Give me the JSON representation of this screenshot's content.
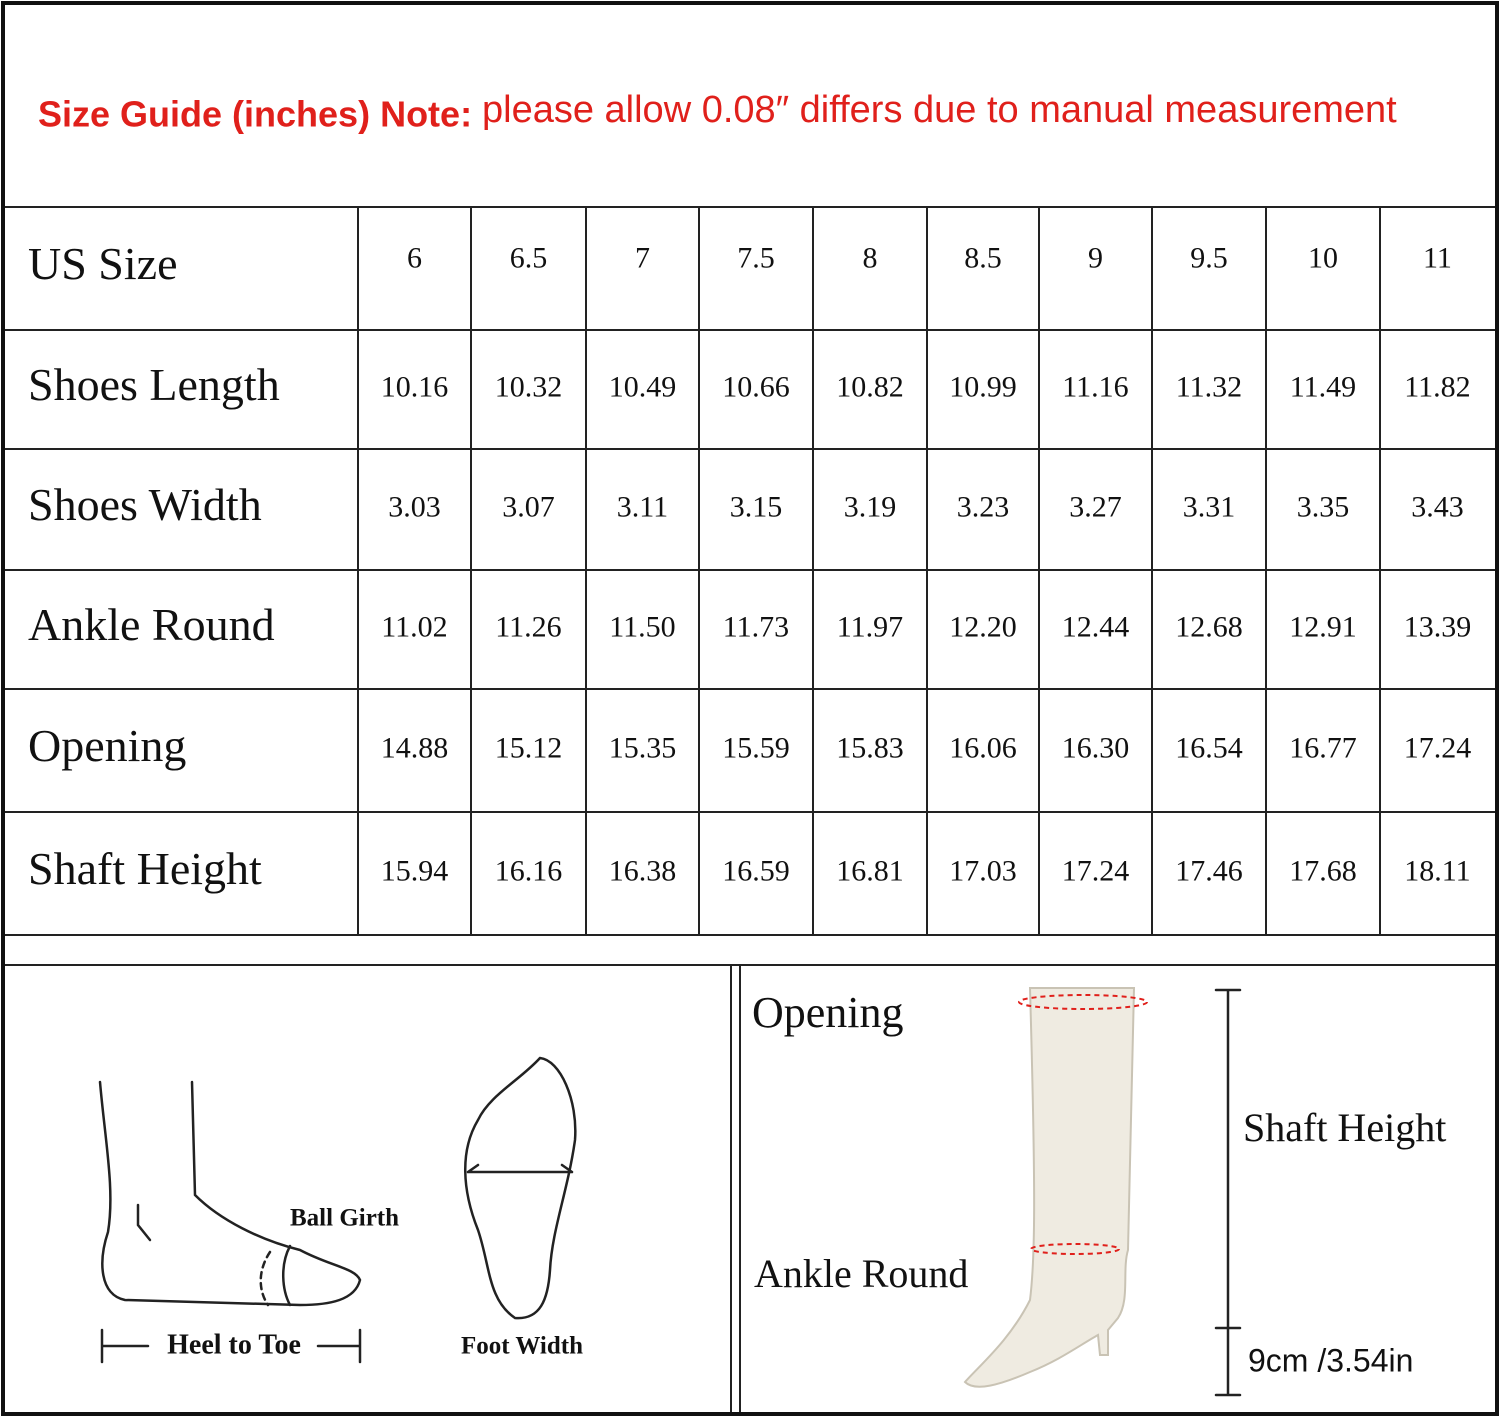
{
  "header": {
    "title": "Size Guide (inches) Note:",
    "note": "please allow 0.08″ differs due to manual measurement"
  },
  "table": {
    "header": [
      "US Size",
      "6",
      "6.5",
      "7",
      "7.5",
      "8",
      "8.5",
      "9",
      "9.5",
      "10",
      "11"
    ],
    "rows": [
      [
        "Shoes Length",
        "10.16",
        "10.32",
        "10.49",
        "10.66",
        "10.82",
        "10.99",
        "11.16",
        "11.32",
        "11.49",
        "11.82"
      ],
      [
        "Shoes Width",
        "3.03",
        "3.07",
        "3.11",
        "3.15",
        "3.19",
        "3.23",
        "3.27",
        "3.31",
        "3.35",
        "3.43"
      ],
      [
        "Ankle Round",
        "11.02",
        "11.26",
        "11.50",
        "11.73",
        "11.97",
        "12.20",
        "12.44",
        "12.68",
        "12.91",
        "13.39"
      ],
      [
        "Opening",
        "14.88",
        "15.12",
        "15.35",
        "15.59",
        "15.83",
        "16.06",
        "16.30",
        "16.54",
        "16.77",
        "17.24"
      ],
      [
        "Shaft Height",
        "15.94",
        "16.16",
        "16.38",
        "16.59",
        "16.81",
        "17.03",
        "17.24",
        "17.46",
        "17.68",
        "18.11"
      ]
    ]
  },
  "foot_diagram": {
    "labels": [
      "Ball Girth",
      "Heel to Toe",
      "Foot Width"
    ]
  },
  "boot_diagram": {
    "labels": [
      "Opening",
      "Shaft Height",
      "Ankle Round",
      "9cm /3.54in"
    ]
  }
}
